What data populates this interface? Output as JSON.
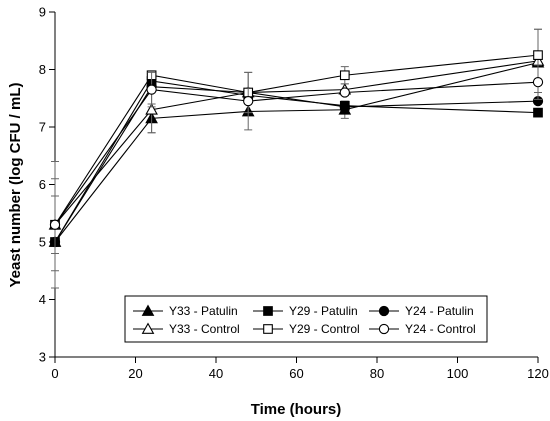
{
  "chart_data": {
    "type": "line",
    "title": "",
    "xlabel": "Time (hours)",
    "ylabel": "Yeast number (log CFU / mL)",
    "xlim": [
      0,
      120
    ],
    "ylim": [
      3,
      9
    ],
    "xticks": [
      0,
      20,
      40,
      60,
      80,
      100,
      120
    ],
    "yticks": [
      3,
      4,
      5,
      6,
      7,
      8,
      9
    ],
    "x": [
      0,
      24,
      48,
      72,
      120
    ],
    "grid": false,
    "legend_position": "bottom-center",
    "series": [
      {
        "name": "Y33 - Patulin",
        "marker": "triangle",
        "filled": true,
        "values": [
          5.0,
          7.15,
          7.27,
          7.3,
          8.12
        ],
        "error": [
          0.0,
          0.25,
          0.0,
          0.15,
          0.0
        ]
      },
      {
        "name": "Y29 - Patulin",
        "marker": "square",
        "filled": true,
        "values": [
          5.0,
          7.8,
          7.55,
          7.37,
          7.25
        ],
        "error": [
          0.0,
          0.0,
          0.0,
          0.0,
          0.0
        ]
      },
      {
        "name": "Y24 - Patulin",
        "marker": "circle",
        "filled": true,
        "values": [
          5.0,
          7.7,
          7.6,
          7.35,
          7.45
        ],
        "error": [
          0.0,
          0.0,
          0.0,
          0.0,
          0.0
        ]
      },
      {
        "name": "Y33 - Control",
        "marker": "triangle",
        "filled": false,
        "values": [
          5.3,
          7.3,
          7.6,
          7.65,
          8.15
        ],
        "error": [
          0.5,
          0.4,
          0.35,
          0.1,
          0.55
        ]
      },
      {
        "name": "Y29 - Control",
        "marker": "square",
        "filled": false,
        "values": [
          5.3,
          7.9,
          7.6,
          7.9,
          8.25
        ],
        "error": [
          0.8,
          0.0,
          0.0,
          0.15,
          0.45
        ]
      },
      {
        "name": "Y24 - Control",
        "marker": "circle",
        "filled": false,
        "values": [
          5.3,
          7.65,
          7.45,
          7.6,
          7.78
        ],
        "error": [
          1.1,
          0.3,
          0.5,
          0.0,
          0.3
        ]
      }
    ]
  }
}
